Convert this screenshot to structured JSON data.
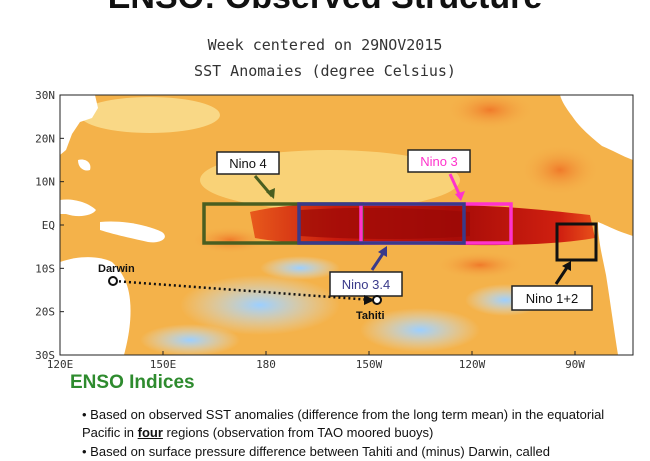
{
  "slide": {
    "title": "ENSO: Observed Structure"
  },
  "map": {
    "title_line1": "Week centered on 29NOV2015",
    "title_line2": "SST Anomaies (degree Celsius)",
    "lat_labels": [
      "30N",
      "20N",
      "10N",
      "EQ",
      "10S",
      "20S",
      "30S"
    ],
    "lon_labels": [
      "120E",
      "150E",
      "180",
      "150W",
      "120W",
      "90W"
    ],
    "colors": {
      "ocean_warm": "#f4b24a",
      "ocean_hot": "#cc1f10",
      "ocean_cool": "#bfe0ff",
      "land": "#ffffff",
      "nino4": "#4a5e20",
      "nino34": "#3a3a8a",
      "nino3": "#ff33cc",
      "nino12": "#111111"
    },
    "regions": {
      "nino4": "Nino 4",
      "nino34": "Nino 3.4",
      "nino3": "Nino 3",
      "nino12": "Nino 1+2"
    },
    "stations": {
      "darwin": "Darwin",
      "tahiti": "Tahiti"
    }
  },
  "indices": {
    "heading": "ENSO Indices",
    "bullet1_pre": "Based on observed SST anomalies (difference from the long term mean) in the equatorial Pacific in ",
    "bullet1_bold": "four",
    "bullet1_post": " regions (observation from TAO moored buoys)",
    "bullet2": "Based on surface pressure difference between Tahiti and (minus) Darwin, called"
  }
}
